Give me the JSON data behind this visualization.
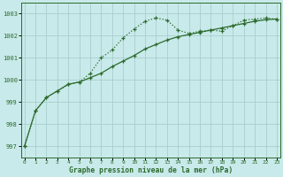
{
  "hours": [
    0,
    1,
    2,
    3,
    4,
    5,
    6,
    7,
    8,
    9,
    10,
    11,
    12,
    13,
    14,
    15,
    16,
    17,
    18,
    19,
    20,
    21,
    22,
    23
  ],
  "line1": [
    997.0,
    998.6,
    999.2,
    999.5,
    999.8,
    999.9,
    1000.3,
    1001.0,
    1001.35,
    1001.9,
    1002.3,
    1002.65,
    1002.8,
    1002.7,
    1002.25,
    1002.1,
    1002.2,
    1002.25,
    1002.2,
    1002.45,
    1002.7,
    1002.75,
    1002.8,
    1002.75
  ],
  "line2": [
    997.0,
    998.6,
    999.2,
    999.5,
    999.8,
    999.9,
    1000.1,
    1000.3,
    1000.6,
    1000.85,
    1001.1,
    1001.4,
    1001.6,
    1001.8,
    1001.95,
    1002.05,
    1002.15,
    1002.25,
    1002.35,
    1002.45,
    1002.55,
    1002.65,
    1002.72,
    1002.75
  ],
  "line1_color": "#2d6a2d",
  "line2_color": "#2d6a2d",
  "bg_color": "#c8eaea",
  "grid_color": "#a8cece",
  "text_color": "#2d6a2d",
  "xlabel": "Graphe pression niveau de la mer (hPa)",
  "yticks": [
    997,
    998,
    999,
    1000,
    1001,
    1002,
    1003
  ],
  "xtick_labels": [
    "0",
    "1",
    "2",
    "3",
    "4",
    "5",
    "6",
    "7",
    "8",
    "9",
    "10",
    "11",
    "12",
    "13",
    "14",
    "15",
    "16",
    "17",
    "18",
    "19",
    "20",
    "21",
    "22",
    "23"
  ],
  "ylim": [
    996.5,
    1003.5
  ],
  "xlim": [
    -0.3,
    23.3
  ]
}
